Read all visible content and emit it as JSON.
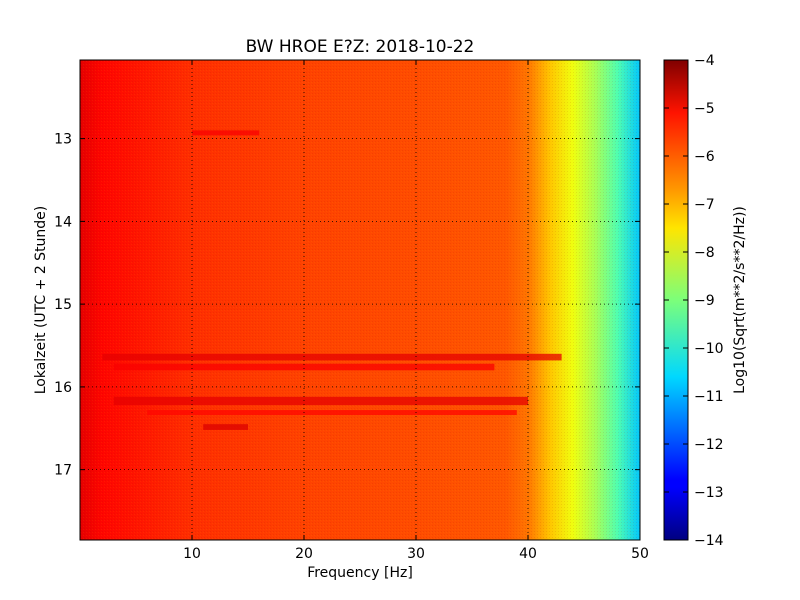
{
  "chart_data": {
    "type": "heatmap",
    "title": "BW HROE E?Z: 2018-10-22",
    "xlabel": "Frequency [Hz]",
    "ylabel": "Lokalzeit (UTC + 2 Stunde)",
    "xlim": [
      0,
      50
    ],
    "ylim": [
      12.05,
      17.85
    ],
    "y_inverted": true,
    "x_ticks": [
      10,
      20,
      30,
      40,
      50
    ],
    "x_tick_labels": [
      "10",
      "20",
      "30",
      "40",
      "50"
    ],
    "y_ticks": [
      13,
      14,
      15,
      16,
      17
    ],
    "y_tick_labels": [
      "13",
      "14",
      "15",
      "16",
      "17"
    ],
    "grid": true,
    "colormap": "jet",
    "colorbar": {
      "label": "Log10(Sqrt(m**2/s**2/Hz))",
      "min": -14,
      "max": -4,
      "ticks": [
        -4,
        -5,
        -6,
        -7,
        -8,
        -9,
        -10,
        -11,
        -12,
        -13,
        -14
      ],
      "tick_labels": [
        "−4",
        "−5",
        "−6",
        "−7",
        "−8",
        "−9",
        "−10",
        "−11",
        "−12",
        "−13",
        "−14"
      ]
    },
    "spectrum_profile": [
      {
        "freq": 0,
        "level": -5.0
      },
      {
        "freq": 2,
        "level": -5.3
      },
      {
        "freq": 10,
        "level": -5.7
      },
      {
        "freq": 20,
        "level": -5.9
      },
      {
        "freq": 30,
        "level": -6.0
      },
      {
        "freq": 38,
        "level": -6.1
      },
      {
        "freq": 40,
        "level": -6.4
      },
      {
        "freq": 42,
        "level": -7.2
      },
      {
        "freq": 44,
        "level": -7.9
      },
      {
        "freq": 46,
        "level": -8.6
      },
      {
        "freq": 48,
        "level": -9.5
      },
      {
        "freq": 50,
        "level": -10.8
      }
    ],
    "high_noise_bands": [
      {
        "time_start": 15.6,
        "time_end": 15.68,
        "freq_start": 2,
        "freq_end": 43,
        "level": -5.0
      },
      {
        "time_start": 15.72,
        "time_end": 15.8,
        "freq_start": 3,
        "freq_end": 37,
        "level": -5.2
      },
      {
        "time_start": 16.12,
        "time_end": 16.22,
        "freq_start": 3,
        "freq_end": 40,
        "level": -5.0
      },
      {
        "time_start": 16.28,
        "time_end": 16.34,
        "freq_start": 6,
        "freq_end": 39,
        "level": -5.3
      },
      {
        "time_start": 16.45,
        "time_end": 16.52,
        "freq_start": 11,
        "freq_end": 15,
        "level": -4.9
      },
      {
        "time_start": 12.9,
        "time_end": 12.96,
        "freq_start": 10,
        "freq_end": 16,
        "level": -5.2
      }
    ]
  }
}
